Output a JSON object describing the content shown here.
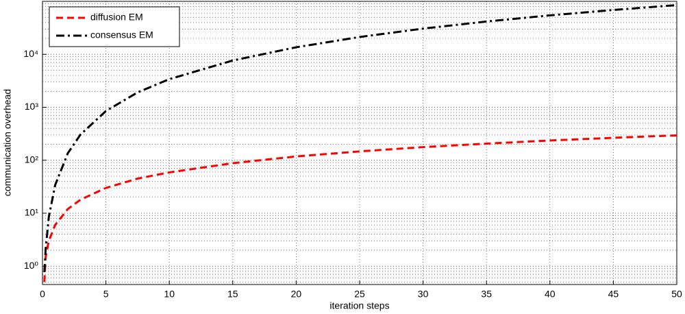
{
  "chart_data": {
    "type": "line",
    "x_label": "iteration steps",
    "y_label": "communication overhead",
    "x": [
      0.15,
      0.25,
      0.5,
      1,
      2,
      3,
      5,
      7.5,
      10,
      15,
      20,
      25,
      30,
      35,
      40,
      45,
      50
    ],
    "series": [
      {
        "name": "diffusion EM",
        "color": "#ff0000",
        "dash": "dashed",
        "values": [
          0.5,
          1.5,
          3,
          6,
          12,
          18,
          30,
          45,
          59,
          88,
          118,
          147,
          177,
          206,
          236,
          265,
          295
        ]
      },
      {
        "name": "consensus EM",
        "color": "#000000",
        "dash": "dashdot",
        "values": [
          0.77,
          2.1,
          8.5,
          34,
          136,
          306,
          850,
          1910,
          3400,
          7650,
          13600,
          21250,
          30600,
          41650,
          54400,
          68850,
          85000
        ]
      }
    ],
    "xlim": [
      0,
      50
    ],
    "xticks": [
      0,
      5,
      10,
      15,
      20,
      25,
      30,
      35,
      40,
      45,
      50
    ],
    "ylim": [
      0.45,
      100000
    ],
    "log_y": true,
    "yticks": [
      {
        "value": 1,
        "label": "10⁰"
      },
      {
        "value": 10,
        "label": "10¹"
      },
      {
        "value": 100,
        "label": "10²"
      },
      {
        "value": 1000,
        "label": "10³"
      },
      {
        "value": 10000,
        "label": "10⁴"
      }
    ],
    "grid": true,
    "minor_grid": true,
    "legend": "upper-left"
  }
}
